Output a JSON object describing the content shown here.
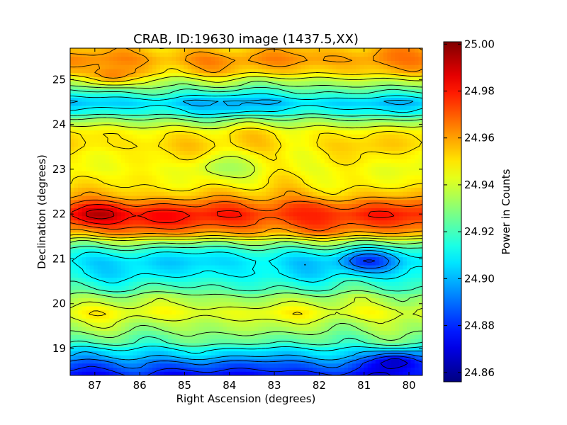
{
  "chart_data": {
    "type": "heatmap",
    "title": "CRAB, ID:19630 image (1437.5,XX)",
    "xlabel": "Right Ascension (degrees)",
    "ylabel": "Declination (degrees)",
    "colorbar_label": "Power in Counts",
    "colormap": "jet",
    "contours": true,
    "xlim": [
      87.55,
      79.7
    ],
    "ylim": [
      18.4,
      25.7
    ],
    "x_ticks": [
      87,
      86,
      85,
      84,
      83,
      82,
      81,
      80
    ],
    "x_tick_labels": [
      "87",
      "86",
      "85",
      "84",
      "83",
      "82",
      "81",
      "80"
    ],
    "y_ticks": [
      19,
      20,
      21,
      22,
      23,
      24,
      25
    ],
    "y_tick_labels": [
      "19",
      "20",
      "21",
      "22",
      "23",
      "24",
      "25"
    ],
    "clim": [
      24.856,
      25.001
    ],
    "colorbar_ticks": [
      24.86,
      24.88,
      24.9,
      24.92,
      24.94,
      24.96,
      24.98,
      25.0
    ],
    "colorbar_tick_labels": [
      "24.86",
      "24.88",
      "24.90",
      "24.92",
      "24.94",
      "24.96",
      "24.98",
      "25.00"
    ],
    "declination_profile": {
      "dec": [
        18.4,
        18.6,
        18.9,
        19.2,
        19.5,
        19.8,
        20.1,
        20.4,
        20.7,
        20.95,
        21.15,
        21.35,
        21.6,
        21.8,
        22.0,
        22.2,
        22.45,
        22.7,
        23.0,
        23.3,
        23.55,
        23.8,
        24.05,
        24.3,
        24.5,
        24.7,
        24.95,
        25.2,
        25.45,
        25.7
      ],
      "power": [
        24.875,
        24.885,
        24.905,
        24.925,
        24.935,
        24.945,
        24.935,
        24.918,
        24.908,
        24.905,
        24.912,
        24.93,
        24.962,
        24.972,
        24.978,
        24.968,
        24.955,
        24.948,
        24.945,
        24.948,
        24.952,
        24.95,
        24.935,
        24.912,
        24.902,
        24.918,
        24.935,
        24.955,
        24.962,
        24.955
      ]
    },
    "features": [
      {
        "ra": 86.9,
        "dec": 22.0,
        "power": 24.998
      },
      {
        "ra": 85.5,
        "dec": 21.95,
        "power": 24.985
      },
      {
        "ra": 82.2,
        "dec": 22.05,
        "power": 24.978
      },
      {
        "ra": 80.9,
        "dec": 20.95,
        "power": 24.875
      },
      {
        "ra": 80.3,
        "dec": 18.7,
        "power": 24.86
      },
      {
        "ra": 86.6,
        "dec": 25.1,
        "power": 24.968
      },
      {
        "ra": 80.2,
        "dec": 25.6,
        "power": 24.968
      },
      {
        "ra": 83.9,
        "dec": 24.45,
        "power": 24.898
      },
      {
        "ra": 84.1,
        "dec": 23.05,
        "power": 24.932
      }
    ]
  }
}
